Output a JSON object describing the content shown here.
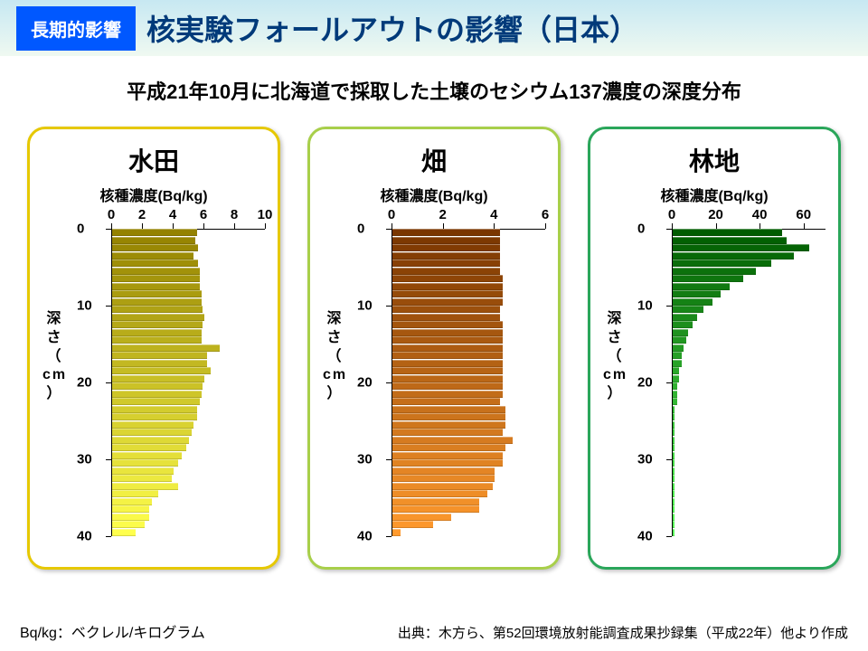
{
  "header": {
    "tag_label": "長期的影響",
    "tag_bg": "#0058ff",
    "title": "核実験フォールアウトの影響（日本）",
    "title_color": "#003a7a",
    "title_fontsize": 32,
    "bg_gradient_top": "#c7e8f2",
    "bg_gradient_bottom": "#eff9f1"
  },
  "subtitle": {
    "text": "平成21年10月に北海道で採取した土壌のセシウム137濃度の深度分布",
    "fontsize": 22,
    "color": "#000000"
  },
  "y_axis": {
    "label": "深さ（cm）",
    "ticks": [
      0,
      10,
      20,
      30,
      40
    ],
    "min": 0,
    "max": 40,
    "fontsize": 16
  },
  "axis_label_text": "核種濃度(Bq/kg)",
  "axis_label_fontsize": 16,
  "panel_title_fontsize": 28,
  "tick_fontsize": 15,
  "panels": [
    {
      "title": "水田",
      "border_color": "#e6c800",
      "x_ticks": [
        0,
        2,
        4,
        6,
        8,
        10
      ],
      "x_max": 10,
      "bar_gradient_from": "#948200",
      "bar_gradient_to": "#ffff4d",
      "values": [
        5.5,
        5.4,
        5.6,
        5.3,
        5.6,
        5.7,
        5.7,
        5.7,
        5.8,
        5.8,
        5.9,
        6.0,
        5.9,
        5.8,
        5.8,
        7.0,
        6.2,
        6.2,
        6.4,
        6.0,
        5.9,
        5.8,
        5.7,
        5.5,
        5.5,
        5.3,
        5.2,
        5.0,
        4.8,
        4.5,
        4.3,
        4.0,
        3.9,
        4.3,
        3.0,
        2.6,
        2.4,
        2.4,
        2.1,
        1.5
      ]
    },
    {
      "title": "畑",
      "border_color": "#a8cf4a",
      "x_ticks": [
        0,
        2,
        4,
        6
      ],
      "x_max": 6,
      "bar_gradient_from": "#7a3600",
      "bar_gradient_to": "#ff9a2e",
      "values": [
        4.2,
        4.2,
        4.2,
        4.2,
        4.2,
        4.2,
        4.3,
        4.3,
        4.3,
        4.3,
        4.2,
        4.2,
        4.3,
        4.3,
        4.3,
        4.3,
        4.3,
        4.3,
        4.3,
        4.3,
        4.3,
        4.3,
        4.2,
        4.4,
        4.4,
        4.4,
        4.3,
        4.7,
        4.4,
        4.3,
        4.3,
        4.0,
        4.0,
        3.9,
        3.7,
        3.4,
        3.4,
        2.3,
        1.6,
        0.3
      ]
    },
    {
      "title": "林地",
      "border_color": "#2aa65a",
      "x_ticks": [
        0,
        20,
        40,
        60
      ],
      "x_max": 70,
      "bar_gradient_from": "#005c00",
      "bar_gradient_to": "#5cff5c",
      "values": [
        50,
        52,
        62,
        55,
        45,
        38,
        32,
        26,
        22,
        18,
        14,
        11,
        9,
        7,
        6,
        5,
        4,
        4,
        3,
        3,
        2,
        2,
        2,
        1,
        1,
        1,
        1,
        1,
        1,
        1,
        1,
        1,
        1,
        1,
        1,
        1,
        1,
        1,
        1,
        1
      ]
    }
  ],
  "footer": {
    "left": "Bq/kg：ベクレル/キログラム",
    "right": "出典：木方ら、第52回環境放射能調査成果抄録集（平成22年）他より作成"
  }
}
